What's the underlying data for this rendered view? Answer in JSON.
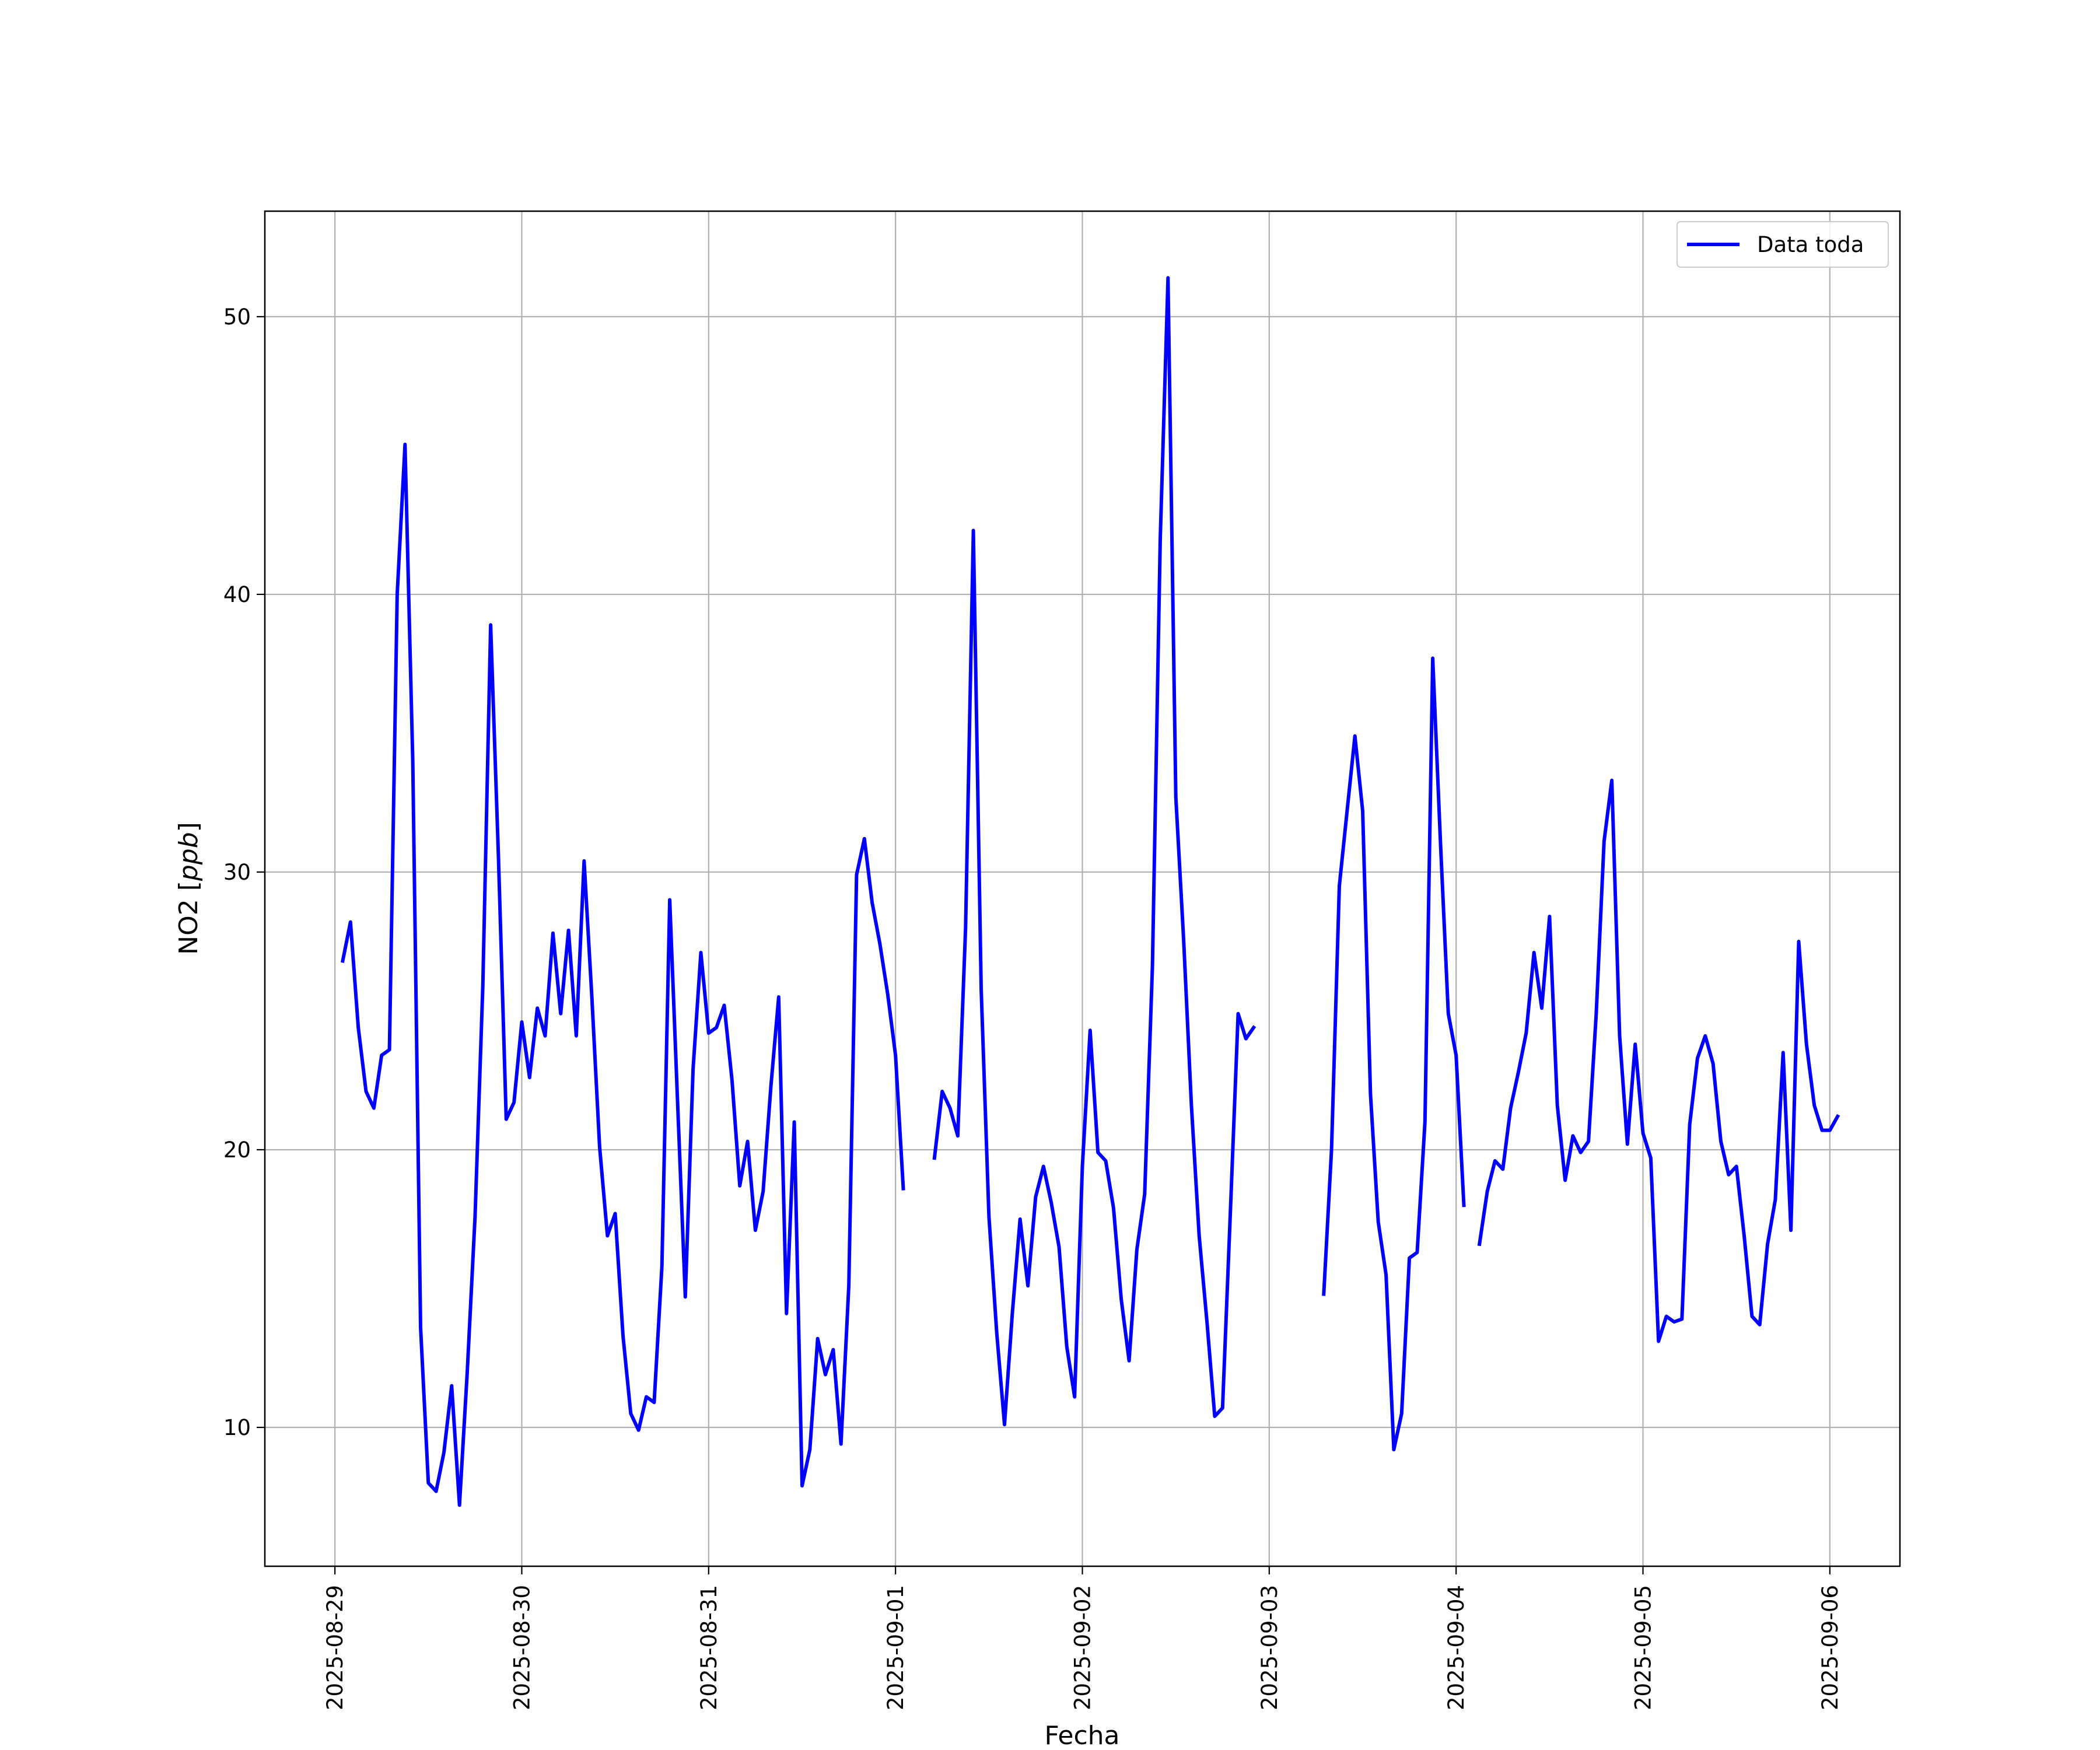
{
  "chart_data": {
    "type": "line",
    "title": "",
    "xlabel": "Fecha",
    "ylabel_main": "NO2 [",
    "ylabel_unit": "ppb",
    "ylabel_close": "]",
    "x_ticks": [
      "2025-08-29",
      "2025-08-30",
      "2025-08-31",
      "2025-09-01",
      "2025-09-02",
      "2025-09-03",
      "2025-09-04",
      "2025-09-05",
      "2025-09-06"
    ],
    "y_ticks": [
      10,
      20,
      30,
      40,
      50
    ],
    "xlim": [
      "2025-08-28T15:00",
      "2025-09-06T09:00"
    ],
    "ylim": [
      5,
      53.8
    ],
    "grid": true,
    "legend_position": "top-right",
    "series": [
      {
        "name": "Data toda",
        "color": "#0000ff",
        "points": [
          [
            "2025-08-29T01:00",
            26.8
          ],
          [
            "2025-08-29T02:00",
            28.2
          ],
          [
            "2025-08-29T03:00",
            24.4
          ],
          [
            "2025-08-29T04:00",
            22.1
          ],
          [
            "2025-08-29T05:00",
            21.5
          ],
          [
            "2025-08-29T06:00",
            23.4
          ],
          [
            "2025-08-29T07:00",
            23.6
          ],
          [
            "2025-08-29T08:00",
            40.0
          ],
          [
            "2025-08-29T09:00",
            45.4
          ],
          [
            "2025-08-29T10:00",
            34.0
          ],
          [
            "2025-08-29T11:00",
            13.6
          ],
          [
            "2025-08-29T12:00",
            8.0
          ],
          [
            "2025-08-29T13:00",
            7.7
          ],
          [
            "2025-08-29T14:00",
            9.1
          ],
          [
            "2025-08-29T15:00",
            11.5
          ],
          [
            "2025-08-29T16:00",
            7.2
          ],
          [
            "2025-08-29T17:00",
            12.0
          ],
          [
            "2025-08-29T18:00",
            17.6
          ],
          [
            "2025-08-29T19:00",
            25.9
          ],
          [
            "2025-08-29T20:00",
            38.9
          ],
          [
            "2025-08-29T21:00",
            30.6
          ],
          [
            "2025-08-29T22:00",
            21.1
          ],
          [
            "2025-08-29T23:00",
            21.7
          ],
          [
            "2025-08-30T00:00",
            24.6
          ],
          [
            "2025-08-30T01:00",
            22.6
          ],
          [
            "2025-08-30T02:00",
            25.1
          ],
          [
            "2025-08-30T03:00",
            24.1
          ],
          [
            "2025-08-30T04:00",
            27.8
          ],
          [
            "2025-08-30T05:00",
            24.9
          ],
          [
            "2025-08-30T06:00",
            27.9
          ],
          [
            "2025-08-30T07:00",
            24.1
          ],
          [
            "2025-08-30T08:00",
            30.4
          ],
          [
            "2025-08-30T09:00",
            25.5
          ],
          [
            "2025-08-30T10:00",
            20.1
          ],
          [
            "2025-08-30T11:00",
            16.9
          ],
          [
            "2025-08-30T12:00",
            17.7
          ],
          [
            "2025-08-30T13:00",
            13.3
          ],
          [
            "2025-08-30T14:00",
            10.5
          ],
          [
            "2025-08-30T15:00",
            9.9
          ],
          [
            "2025-08-30T16:00",
            11.1
          ],
          [
            "2025-08-30T17:00",
            10.9
          ],
          [
            "2025-08-30T18:00",
            15.8
          ],
          [
            "2025-08-30T19:00",
            29.0
          ],
          [
            "2025-08-30T20:00",
            21.8
          ],
          [
            "2025-08-30T21:00",
            14.7
          ],
          [
            "2025-08-30T22:00",
            22.9
          ],
          [
            "2025-08-30T23:00",
            27.1
          ],
          [
            "2025-08-31T00:00",
            24.2
          ],
          [
            "2025-08-31T01:00",
            24.4
          ],
          [
            "2025-08-31T02:00",
            25.2
          ],
          [
            "2025-08-31T03:00",
            22.5
          ],
          [
            "2025-08-31T04:00",
            18.7
          ],
          [
            "2025-08-31T05:00",
            20.3
          ],
          [
            "2025-08-31T06:00",
            17.1
          ],
          [
            "2025-08-31T07:00",
            18.5
          ],
          [
            "2025-08-31T08:00",
            22.3
          ],
          [
            "2025-08-31T09:00",
            25.5
          ],
          [
            "2025-08-31T10:00",
            14.1
          ],
          [
            "2025-08-31T11:00",
            21.0
          ],
          [
            "2025-08-31T12:00",
            7.9
          ],
          [
            "2025-08-31T13:00",
            9.2
          ],
          [
            "2025-08-31T14:00",
            13.2
          ],
          [
            "2025-08-31T15:00",
            11.9
          ],
          [
            "2025-08-31T16:00",
            12.8
          ],
          [
            "2025-08-31T17:00",
            9.4
          ],
          [
            "2025-08-31T18:00",
            15.1
          ],
          [
            "2025-08-31T19:00",
            29.9
          ],
          [
            "2025-08-31T20:00",
            31.2
          ],
          [
            "2025-08-31T21:00",
            28.9
          ],
          [
            "2025-08-31T22:00",
            27.4
          ],
          [
            "2025-08-31T23:00",
            25.6
          ],
          [
            "2025-09-01T00:00",
            23.4
          ],
          [
            "2025-09-01T01:00",
            18.6
          ],
          null,
          [
            "2025-09-01T05:00",
            19.7
          ],
          [
            "2025-09-01T06:00",
            22.1
          ],
          [
            "2025-09-01T07:00",
            21.5
          ],
          [
            "2025-09-01T08:00",
            20.5
          ],
          [
            "2025-09-01T09:00",
            28.0
          ],
          [
            "2025-09-01T10:00",
            42.3
          ],
          [
            "2025-09-01T11:00",
            25.8
          ],
          [
            "2025-09-01T12:00",
            17.6
          ],
          [
            "2025-09-01T13:00",
            13.4
          ],
          [
            "2025-09-01T14:00",
            10.1
          ],
          [
            "2025-09-01T15:00",
            14.1
          ],
          [
            "2025-09-01T16:00",
            17.5
          ],
          [
            "2025-09-01T17:00",
            15.1
          ],
          [
            "2025-09-01T18:00",
            18.3
          ],
          [
            "2025-09-01T19:00",
            19.4
          ],
          [
            "2025-09-01T20:00",
            18.1
          ],
          [
            "2025-09-01T21:00",
            16.5
          ],
          [
            "2025-09-01T22:00",
            12.9
          ],
          [
            "2025-09-01T23:00",
            11.1
          ],
          [
            "2025-09-02T00:00",
            19.4
          ],
          [
            "2025-09-02T01:00",
            24.3
          ],
          [
            "2025-09-02T02:00",
            19.9
          ],
          [
            "2025-09-02T03:00",
            19.6
          ],
          [
            "2025-09-02T04:00",
            17.9
          ],
          [
            "2025-09-02T05:00",
            14.6
          ],
          [
            "2025-09-02T06:00",
            12.4
          ],
          [
            "2025-09-02T07:00",
            16.4
          ],
          [
            "2025-09-02T08:00",
            18.4
          ],
          [
            "2025-09-02T09:00",
            26.6
          ],
          [
            "2025-09-02T10:00",
            42.0
          ],
          [
            "2025-09-02T11:00",
            51.4
          ],
          [
            "2025-09-02T12:00",
            32.7
          ],
          [
            "2025-09-02T13:00",
            27.6
          ],
          [
            "2025-09-02T14:00",
            21.6
          ],
          [
            "2025-09-02T15:00",
            16.9
          ],
          [
            "2025-09-02T16:00",
            13.8
          ],
          [
            "2025-09-02T17:00",
            10.4
          ],
          [
            "2025-09-02T18:00",
            10.7
          ],
          [
            "2025-09-02T19:00",
            17.7
          ],
          [
            "2025-09-02T20:00",
            24.9
          ],
          [
            "2025-09-02T21:00",
            24.0
          ],
          [
            "2025-09-02T22:00",
            24.4
          ],
          null,
          [
            "2025-09-03T07:00",
            14.8
          ],
          [
            "2025-09-03T08:00",
            20.0
          ],
          [
            "2025-09-03T09:00",
            29.5
          ],
          [
            "2025-09-03T10:00",
            32.2
          ],
          [
            "2025-09-03T11:00",
            34.9
          ],
          [
            "2025-09-03T12:00",
            32.2
          ],
          [
            "2025-09-03T13:00",
            22.0
          ],
          [
            "2025-09-03T14:00",
            17.4
          ],
          [
            "2025-09-03T15:00",
            15.5
          ],
          [
            "2025-09-03T16:00",
            9.2
          ],
          [
            "2025-09-03T17:00",
            10.5
          ],
          [
            "2025-09-03T18:00",
            16.1
          ],
          [
            "2025-09-03T19:00",
            16.3
          ],
          [
            "2025-09-03T20:00",
            21.0
          ],
          [
            "2025-09-03T21:00",
            37.7
          ],
          [
            "2025-09-03T22:00",
            31.0
          ],
          [
            "2025-09-03T23:00",
            24.9
          ],
          [
            "2025-09-04T00:00",
            23.4
          ],
          [
            "2025-09-04T01:00",
            18.0
          ],
          null,
          [
            "2025-09-04T03:00",
            16.6
          ],
          [
            "2025-09-04T04:00",
            18.5
          ],
          [
            "2025-09-04T05:00",
            19.6
          ],
          [
            "2025-09-04T06:00",
            19.3
          ],
          [
            "2025-09-04T07:00",
            21.5
          ],
          [
            "2025-09-04T08:00",
            22.8
          ],
          [
            "2025-09-04T09:00",
            24.2
          ],
          [
            "2025-09-04T10:00",
            27.1
          ],
          [
            "2025-09-04T11:00",
            25.1
          ],
          [
            "2025-09-04T12:00",
            28.4
          ],
          [
            "2025-09-04T13:00",
            21.6
          ],
          [
            "2025-09-04T14:00",
            18.9
          ],
          [
            "2025-09-04T15:00",
            20.5
          ],
          [
            "2025-09-04T16:00",
            19.9
          ],
          [
            "2025-09-04T17:00",
            20.3
          ],
          [
            "2025-09-04T18:00",
            24.9
          ],
          [
            "2025-09-04T19:00",
            31.1
          ],
          [
            "2025-09-04T20:00",
            33.3
          ],
          [
            "2025-09-04T21:00",
            24.1
          ],
          [
            "2025-09-04T22:00",
            20.2
          ],
          [
            "2025-09-04T23:00",
            23.8
          ],
          [
            "2025-09-05T00:00",
            20.6
          ],
          [
            "2025-09-05T01:00",
            19.7
          ],
          [
            "2025-09-05T02:00",
            13.1
          ],
          [
            "2025-09-05T03:00",
            14.0
          ],
          [
            "2025-09-05T04:00",
            13.8
          ],
          [
            "2025-09-05T05:00",
            13.9
          ],
          [
            "2025-09-05T06:00",
            20.9
          ],
          [
            "2025-09-05T07:00",
            23.3
          ],
          [
            "2025-09-05T08:00",
            24.1
          ],
          [
            "2025-09-05T09:00",
            23.1
          ],
          [
            "2025-09-05T10:00",
            20.3
          ],
          [
            "2025-09-05T11:00",
            19.1
          ],
          [
            "2025-09-05T12:00",
            19.4
          ],
          [
            "2025-09-05T13:00",
            16.9
          ],
          [
            "2025-09-05T14:00",
            14.0
          ],
          [
            "2025-09-05T15:00",
            13.7
          ],
          [
            "2025-09-05T16:00",
            16.6
          ],
          [
            "2025-09-05T17:00",
            18.2
          ],
          [
            "2025-09-05T18:00",
            23.5
          ],
          [
            "2025-09-05T19:00",
            17.1
          ],
          [
            "2025-09-05T20:00",
            27.5
          ],
          [
            "2025-09-05T21:00",
            23.8
          ],
          [
            "2025-09-05T22:00",
            21.6
          ],
          [
            "2025-09-05T23:00",
            20.7
          ],
          [
            "2025-09-06T00:00",
            20.7
          ],
          [
            "2025-09-06T01:00",
            21.2
          ]
        ]
      }
    ]
  }
}
